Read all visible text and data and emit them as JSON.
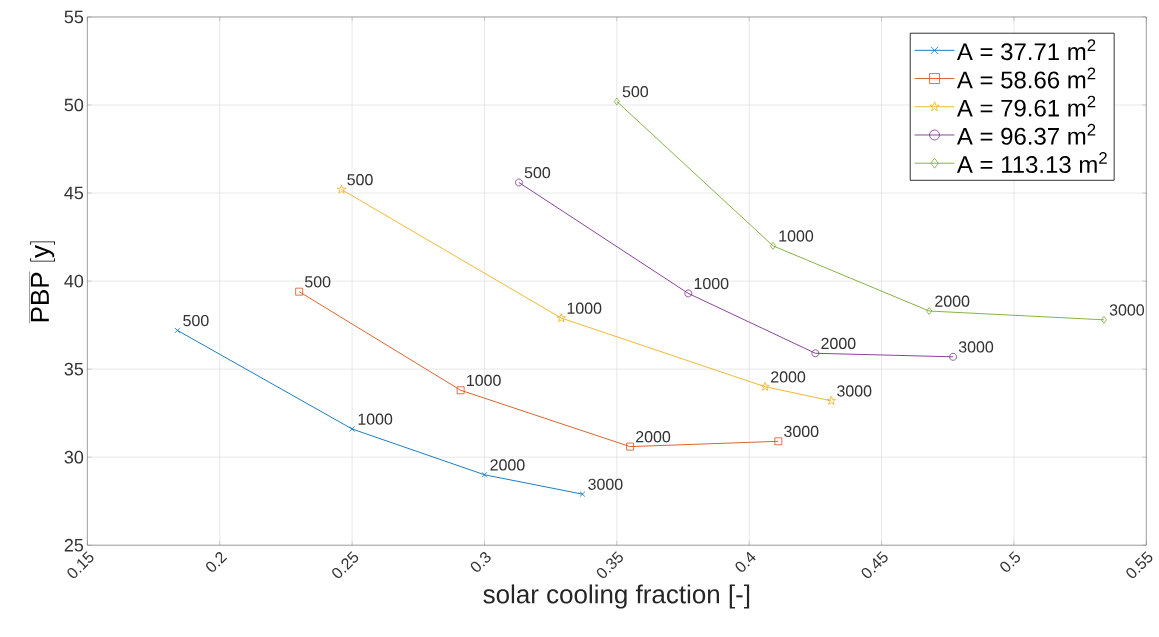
{
  "chart_data": {
    "type": "line",
    "xlabel": "solar cooling fraction [-]",
    "ylabel": "\\overline{\\mathsf{PBP}}\\ \\mathsf{[y]}",
    "xlim": [
      0.15,
      0.55
    ],
    "ylim": [
      25,
      55
    ],
    "xticks": [
      0.15,
      0.2,
      0.25,
      0.3,
      0.35,
      0.4,
      0.45,
      0.5,
      0.55
    ],
    "yticks": [
      25,
      30,
      35,
      40,
      45,
      50,
      55
    ],
    "grid": true,
    "legend": "top right",
    "series": [
      {
        "name": "A = 37.71 m$^{2}$",
        "color": "#0072bd",
        "marker": "cross",
        "x": [
          0.184,
          0.25,
          0.3,
          0.337
        ],
        "values": [
          37.2,
          31.6,
          29.0,
          27.9
        ]
      },
      {
        "name": "A = 58.66 m$^{2}$",
        "color": "#d95319",
        "marker": "square",
        "x": [
          0.23,
          0.291,
          0.355,
          0.411
        ],
        "values": [
          39.4,
          33.8,
          30.6,
          30.9
        ]
      },
      {
        "name": "A = 79.61 m$^{2}$",
        "color": "#edb120",
        "marker": "star",
        "x": [
          0.246,
          0.329,
          0.406,
          0.431
        ],
        "values": [
          45.2,
          37.9,
          34.0,
          33.2
        ]
      },
      {
        "name": "A = 96.37 m$^{2}$",
        "color": "#7e2f8e",
        "marker": "circle",
        "x": [
          0.313,
          0.377,
          0.425,
          0.477
        ],
        "values": [
          45.6,
          39.3,
          35.9,
          35.7
        ]
      },
      {
        "name": "A = 113.13 m$^{2}$",
        "color": "#77ac30",
        "marker": "diamond",
        "x": [
          0.35,
          0.409,
          0.468,
          0.534
        ],
        "values": [
          50.2,
          42.0,
          38.3,
          37.8
        ]
      }
    ],
    "annotations": [
      {
        "text": "500",
        "x": 0.184,
        "y": 37.2
      },
      {
        "text": "1000",
        "x": 0.25,
        "y": 31.6
      },
      {
        "text": "2000",
        "x": 0.3,
        "y": 29.0
      },
      {
        "text": "3000",
        "x": 0.337,
        "y": 27.9
      },
      {
        "text": "500",
        "x": 0.23,
        "y": 39.4
      },
      {
        "text": "1000",
        "x": 0.291,
        "y": 33.8
      },
      {
        "text": "2000",
        "x": 0.355,
        "y": 30.6
      },
      {
        "text": "3000",
        "x": 0.411,
        "y": 30.9
      },
      {
        "text": "500",
        "x": 0.246,
        "y": 45.2
      },
      {
        "text": "1000",
        "x": 0.329,
        "y": 37.9
      },
      {
        "text": "2000",
        "x": 0.406,
        "y": 34.0
      },
      {
        "text": "3000",
        "x": 0.431,
        "y": 33.2
      },
      {
        "text": "500",
        "x": 0.313,
        "y": 45.6
      },
      {
        "text": "1000",
        "x": 0.377,
        "y": 39.3
      },
      {
        "text": "2000",
        "x": 0.425,
        "y": 35.9
      },
      {
        "text": "3000",
        "x": 0.477,
        "y": 35.7
      },
      {
        "text": "500",
        "x": 0.35,
        "y": 50.2
      },
      {
        "text": "1000",
        "x": 0.409,
        "y": 42.0
      },
      {
        "text": "2000",
        "x": 0.468,
        "y": 38.3
      },
      {
        "text": "3000",
        "x": 0.534,
        "y": 37.8
      }
    ]
  }
}
